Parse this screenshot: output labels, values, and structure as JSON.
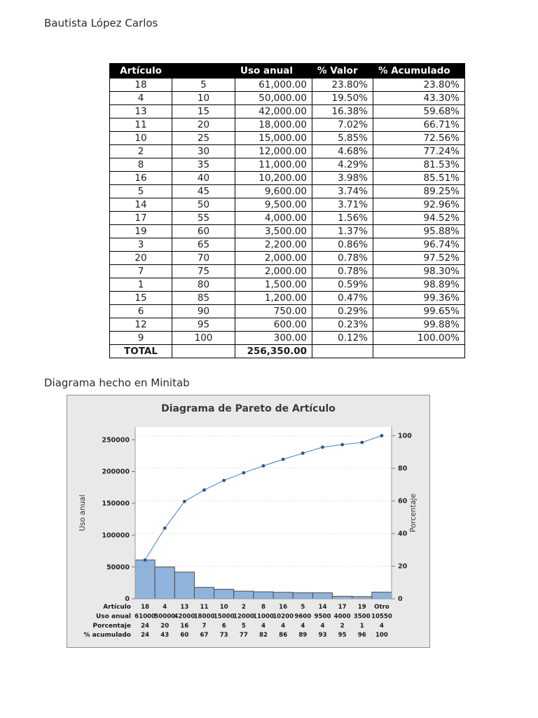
{
  "page": {
    "author": "Bautista López Carlos",
    "caption": "Diagrama hecho en Minitab"
  },
  "table": {
    "headers": [
      "Artículo",
      "",
      "Uso anual",
      "% Valor",
      "% Acumulado"
    ],
    "rows": [
      [
        "18",
        "5",
        "61,000.00",
        "23.80%",
        "23.80%"
      ],
      [
        "4",
        "10",
        "50,000.00",
        "19.50%",
        "43.30%"
      ],
      [
        "13",
        "15",
        "42,000.00",
        "16.38%",
        "59.68%"
      ],
      [
        "11",
        "20",
        "18,000.00",
        "7.02%",
        "66.71%"
      ],
      [
        "10",
        "25",
        "15,000.00",
        "5.85%",
        "72.56%"
      ],
      [
        "2",
        "30",
        "12,000.00",
        "4.68%",
        "77.24%"
      ],
      [
        "8",
        "35",
        "11,000.00",
        "4.29%",
        "81.53%"
      ],
      [
        "16",
        "40",
        "10,200.00",
        "3.98%",
        "85.51%"
      ],
      [
        "5",
        "45",
        "9,600.00",
        "3.74%",
        "89.25%"
      ],
      [
        "14",
        "50",
        "9,500.00",
        "3.71%",
        "92.96%"
      ],
      [
        "17",
        "55",
        "4,000.00",
        "1.56%",
        "94.52%"
      ],
      [
        "19",
        "60",
        "3,500.00",
        "1.37%",
        "95.88%"
      ],
      [
        "3",
        "65",
        "2,200.00",
        "0.86%",
        "96.74%"
      ],
      [
        "20",
        "70",
        "2,000.00",
        "0.78%",
        "97.52%"
      ],
      [
        "7",
        "75",
        "2,000.00",
        "0.78%",
        "98.30%"
      ],
      [
        "1",
        "80",
        "1,500.00",
        "0.59%",
        "98.89%"
      ],
      [
        "15",
        "85",
        "1,200.00",
        "0.47%",
        "99.36%"
      ],
      [
        "6",
        "90",
        "750.00",
        "0.29%",
        "99.65%"
      ],
      [
        "12",
        "95",
        "600.00",
        "0.23%",
        "99.88%"
      ],
      [
        "9",
        "100",
        "300.00",
        "0.12%",
        "100.00%"
      ]
    ],
    "total": {
      "label": "TOTAL",
      "uso_anual": "256,350.00"
    }
  },
  "chart_data": {
    "type": "bar",
    "subtype": "pareto-with-cumulative-line",
    "title": "Diagrama de Pareto de Artículo",
    "xlabel": "Artículo",
    "ylabel_left": "Uso anual",
    "ylabel_right": "Porcentaje",
    "categories": [
      "18",
      "4",
      "13",
      "11",
      "10",
      "2",
      "8",
      "16",
      "5",
      "14",
      "17",
      "19",
      "Otro"
    ],
    "series": [
      {
        "name": "Uso anual",
        "type": "bar",
        "values": [
          61000,
          50000,
          42000,
          18000,
          15000,
          12000,
          11000,
          10200,
          9600,
          9500,
          4000,
          3500,
          10550
        ]
      },
      {
        "name": "% acumulado",
        "type": "line",
        "values": [
          23.8,
          43.3,
          59.68,
          66.71,
          72.56,
          77.24,
          81.53,
          85.51,
          89.25,
          92.96,
          94.52,
          95.88,
          100.0
        ]
      }
    ],
    "footer_rows": [
      {
        "label": "Artículo",
        "values": [
          "18",
          "4",
          "13",
          "11",
          "10",
          "2",
          "8",
          "16",
          "5",
          "14",
          "17",
          "19",
          "Otro"
        ]
      },
      {
        "label": "Uso anual",
        "values": [
          "61000",
          "50000",
          "42000",
          "18000",
          "15000",
          "12000",
          "11000",
          "10200",
          "9600",
          "9500",
          "4000",
          "3500",
          "10550"
        ]
      },
      {
        "label": "Porcentaje",
        "values": [
          "24",
          "20",
          "16",
          "7",
          "6",
          "5",
          "4",
          "4",
          "4",
          "4",
          "2",
          "1",
          "4"
        ]
      },
      {
        "label": "% acumulado",
        "values": [
          "24",
          "43",
          "60",
          "67",
          "73",
          "77",
          "82",
          "86",
          "89",
          "93",
          "95",
          "96",
          "100"
        ]
      }
    ],
    "left_axis": {
      "ticks": [
        0,
        50000,
        100000,
        150000,
        200000,
        250000
      ],
      "plot_max": 270000
    },
    "right_axis": {
      "ticks": [
        0,
        20,
        40,
        60,
        80,
        100
      ]
    },
    "grid": "dotted horizontal at right-axis ticks",
    "colors": {
      "bar_fill": "#8FB3DB",
      "bar_stroke": "#4d4d4d",
      "line": "#4C7FBE",
      "marker": "#2A5793",
      "chart_bg": "#e9e9e9",
      "plot_bg": "#ffffff"
    }
  }
}
